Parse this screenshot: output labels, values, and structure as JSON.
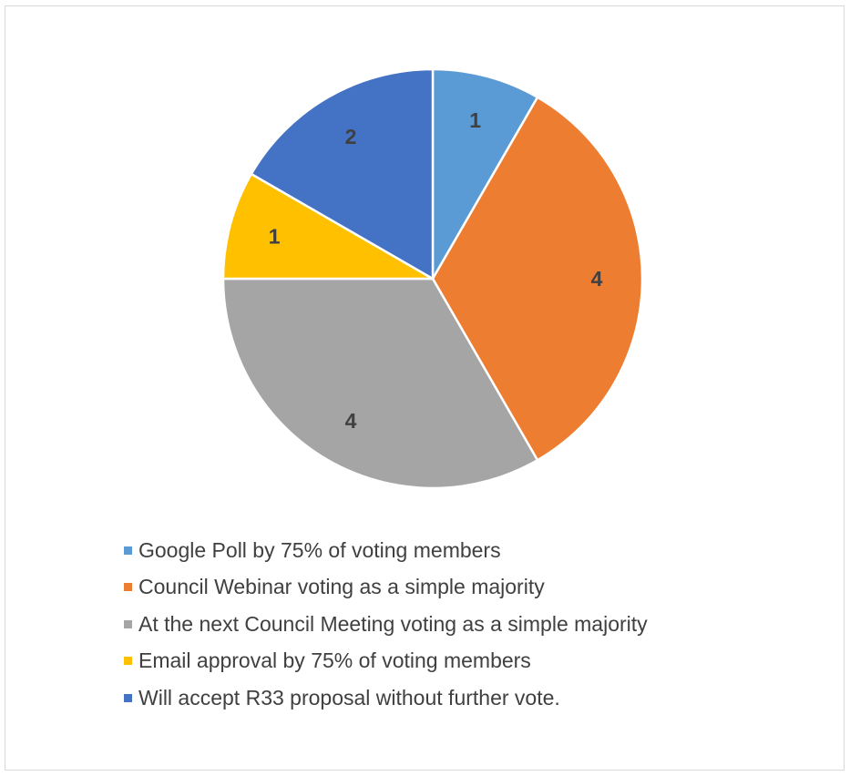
{
  "chart_data": {
    "type": "pie",
    "title": "",
    "categories": [
      "Google Poll by 75% of voting members",
      "Council Webinar voting as a simple majority",
      "At the next Council Meeting voting as a simple majority",
      "Email approval by 75% of voting members",
      "Will accept R33 proposal without further vote."
    ],
    "values": [
      1,
      4,
      4,
      1,
      2
    ],
    "data_labels": [
      "1",
      "4",
      "4",
      "1",
      "2"
    ],
    "colors": [
      "#5b9bd5",
      "#ed7d31",
      "#a5a5a5",
      "#ffc000",
      "#4472c4"
    ],
    "legend_position": "bottom",
    "start_angle_deg": 0,
    "direction": "clockwise"
  }
}
